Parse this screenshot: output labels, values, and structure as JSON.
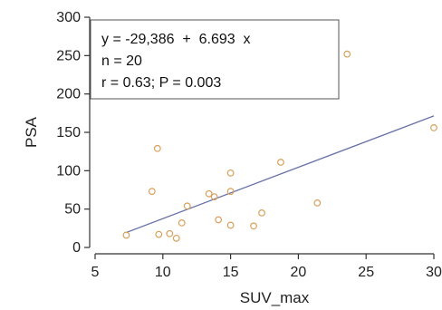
{
  "chart_data": {
    "type": "scatter",
    "title": "",
    "xlabel": "SUV_max",
    "ylabel": "PSA",
    "xlim": [
      5,
      30
    ],
    "ylim": [
      0,
      300
    ],
    "x_ticks": [
      5,
      10,
      15,
      20,
      25,
      30
    ],
    "y_ticks": [
      0,
      50,
      100,
      150,
      200,
      250,
      300
    ],
    "grid": false,
    "point_color": "#d9a05b",
    "line_color": "#6a73a8",
    "regression": {
      "intercept": -29.386,
      "slope": 6.693,
      "x_range": [
        7.3,
        30
      ]
    },
    "annotation": [
      "y = -29,386  +  6.693  x",
      "n = 20",
      "r = 0.63; P = 0.003"
    ],
    "points": [
      {
        "x": 7.3,
        "y": 16
      },
      {
        "x": 9.2,
        "y": 73
      },
      {
        "x": 9.6,
        "y": 129
      },
      {
        "x": 9.7,
        "y": 17
      },
      {
        "x": 10.5,
        "y": 18
      },
      {
        "x": 11.0,
        "y": 12
      },
      {
        "x": 11.4,
        "y": 32
      },
      {
        "x": 11.8,
        "y": 54
      },
      {
        "x": 13.4,
        "y": 70
      },
      {
        "x": 13.8,
        "y": 66
      },
      {
        "x": 14.1,
        "y": 36
      },
      {
        "x": 15.0,
        "y": 97
      },
      {
        "x": 15.0,
        "y": 73
      },
      {
        "x": 15.0,
        "y": 29
      },
      {
        "x": 16.7,
        "y": 28
      },
      {
        "x": 17.3,
        "y": 45
      },
      {
        "x": 18.7,
        "y": 111
      },
      {
        "x": 21.4,
        "y": 58
      },
      {
        "x": 23.6,
        "y": 252
      },
      {
        "x": 30.0,
        "y": 156
      }
    ]
  }
}
